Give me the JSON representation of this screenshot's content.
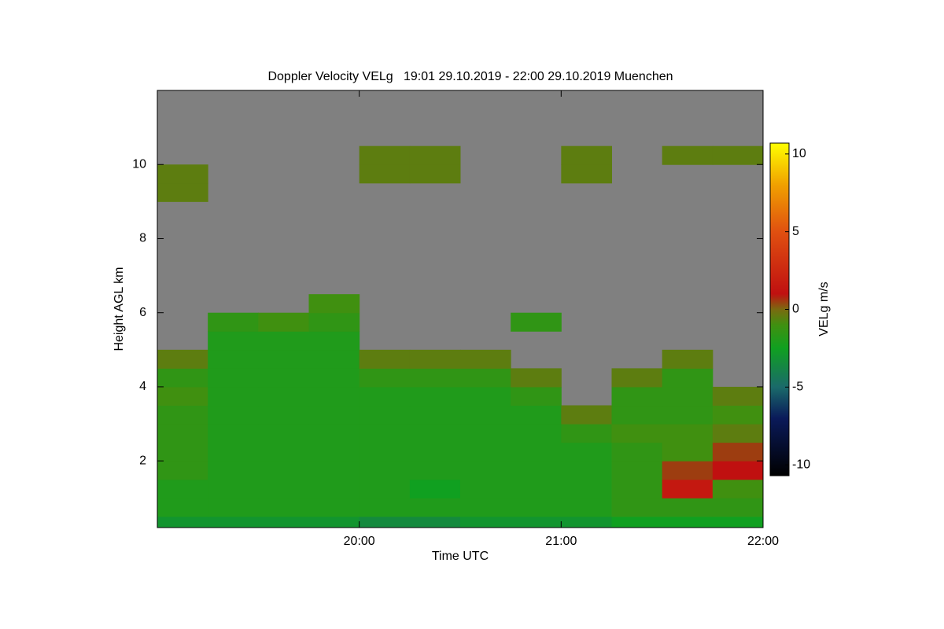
{
  "chart_data": {
    "type": "heatmap",
    "title": "Doppler Velocity VELg   19:01 29.10.2019 - 22:00 29.10.2019 Muenchen",
    "x_label": "Time UTC",
    "y_label": "Height AGL km",
    "colorbar_label": "VELg m/s",
    "xlim": [
      19,
      22
    ],
    "xticks": [
      {
        "value": 20,
        "label": "20:00"
      },
      {
        "value": 21,
        "label": "21:00"
      },
      {
        "value": 22,
        "label": "22:00"
      }
    ],
    "ylim": [
      0.2,
      12
    ],
    "yticks": [
      2,
      4,
      6,
      8,
      10
    ],
    "clim": [
      -10.7,
      10.7
    ],
    "cticks": [
      -10,
      -5,
      0,
      5,
      10
    ],
    "nodata_color": "#808080",
    "colorscale": [
      {
        "value": -10.7,
        "color": "#000000"
      },
      {
        "value": -7,
        "color": "#0a1a5a"
      },
      {
        "value": -5,
        "color": "#1a6a6a"
      },
      {
        "value": -2.5,
        "color": "#10a020"
      },
      {
        "value": -1,
        "color": "#409010"
      },
      {
        "value": 0,
        "color": "#7a6a10"
      },
      {
        "value": 1,
        "color": "#c01010"
      },
      {
        "value": 5,
        "color": "#e05010"
      },
      {
        "value": 8,
        "color": "#f0a000"
      },
      {
        "value": 10.7,
        "color": "#ffff00"
      }
    ],
    "x": [
      19,
      19.25,
      19.5,
      19.75,
      20,
      20.25,
      20.5,
      20.75,
      21,
      21.25,
      21.5,
      21.75,
      22
    ],
    "y": [
      0,
      0.5,
      1,
      1.5,
      2,
      2.5,
      3,
      3.5,
      4,
      4.5,
      5,
      5.5,
      6,
      6.5,
      7,
      7.5,
      8,
      8.5,
      9,
      9.5,
      10,
      10.5,
      11,
      11.5,
      12
    ],
    "values": [
      [
        -3,
        -3,
        -3,
        -3,
        -3.5,
        -3.5,
        -3,
        -3,
        -3,
        -2.5,
        -2.5,
        -2.5
      ],
      [
        -2,
        -2,
        -2,
        -2,
        -2,
        -2,
        -2,
        -2,
        -2,
        -1.5,
        -1.5,
        -1.5
      ],
      [
        -2,
        -2,
        -2,
        -2,
        -2,
        -2.5,
        -2,
        -2,
        -2,
        -1.5,
        1.5,
        -1
      ],
      [
        -1.5,
        -2,
        -2,
        -2,
        -2,
        -2,
        -2,
        -2,
        -2,
        -1.5,
        0.5,
        1
      ],
      [
        -1.5,
        -2,
        -2,
        -2,
        -2,
        -2,
        -2,
        -2,
        -2,
        -1.5,
        -1,
        0.5
      ],
      [
        -1.5,
        -2,
        -2,
        -2,
        -2,
        -2,
        -2,
        -2,
        -1.5,
        -1,
        -1,
        -0.5
      ],
      [
        -1.5,
        -2,
        -2,
        -2,
        -2,
        -2,
        -2,
        -2,
        -0.5,
        -1.5,
        -1.5,
        -1
      ],
      [
        -1,
        -2,
        -2,
        -2,
        -2,
        -2,
        -2,
        -1.5,
        null,
        -1.5,
        -1.5,
        -0.5
      ],
      [
        -1.5,
        -2,
        -2,
        -2,
        -1.5,
        -1.5,
        -1.5,
        -0.5,
        null,
        -0.5,
        -1.5,
        null
      ],
      [
        -0.5,
        -2,
        -2,
        -2,
        -0.5,
        -0.5,
        -0.5,
        null,
        null,
        null,
        -0.5,
        null
      ],
      [
        null,
        -2,
        -2,
        -2,
        null,
        null,
        null,
        null,
        null,
        null,
        null,
        null
      ],
      [
        null,
        -1.5,
        -1,
        -1.5,
        null,
        null,
        null,
        -1.5,
        null,
        null,
        null,
        null
      ],
      [
        null,
        null,
        null,
        -1,
        null,
        null,
        null,
        null,
        null,
        null,
        null,
        null
      ],
      [
        null,
        null,
        null,
        null,
        null,
        null,
        null,
        null,
        null,
        null,
        null,
        null
      ],
      [
        null,
        null,
        null,
        null,
        null,
        null,
        null,
        null,
        null,
        null,
        null,
        null
      ],
      [
        null,
        null,
        null,
        null,
        null,
        null,
        null,
        null,
        null,
        null,
        null,
        null
      ],
      [
        null,
        null,
        null,
        null,
        null,
        null,
        null,
        null,
        null,
        null,
        null,
        null
      ],
      [
        null,
        null,
        null,
        null,
        null,
        null,
        null,
        null,
        null,
        null,
        null,
        null
      ],
      [
        -0.5,
        null,
        null,
        null,
        null,
        null,
        null,
        null,
        null,
        null,
        null,
        null
      ],
      [
        -0.5,
        null,
        null,
        null,
        -0.5,
        -0.5,
        null,
        null,
        -0.5,
        null,
        null,
        null
      ],
      [
        null,
        null,
        null,
        null,
        -0.5,
        -0.5,
        null,
        null,
        -0.5,
        null,
        -0.5,
        -0.5
      ],
      [
        null,
        null,
        null,
        null,
        null,
        null,
        null,
        null,
        null,
        null,
        null,
        null
      ],
      [
        null,
        null,
        null,
        null,
        null,
        null,
        null,
        null,
        null,
        null,
        null,
        null
      ],
      [
        null,
        null,
        null,
        null,
        null,
        null,
        null,
        null,
        null,
        null,
        null,
        null
      ]
    ]
  }
}
